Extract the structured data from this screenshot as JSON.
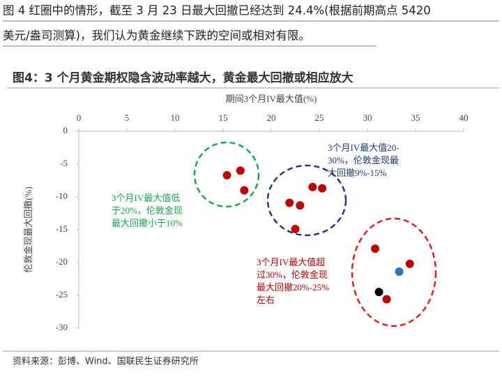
{
  "document": {
    "paragraph": [
      "图 4 红圈中的情形，截至 3 月 23 日最大回撤已经达到 24.4%(根据前期高点 5420",
      "美元/盎司测算)，我们认为黄金继续下跌的空间或相对有限。"
    ],
    "figure_title": "图4：3 个月黄金期权隐含波动率越大，黄金最大回撤或相应放大",
    "source": "资料来源：彭博、Wind、国联民生证券研究所"
  },
  "chart_data": {
    "type": "scatter",
    "x_label": "期间3个月IV最大值(%)",
    "y_label": "伦敦金现最大回撤(%)",
    "xlim": [
      0,
      40
    ],
    "xticks": [
      0,
      5,
      10,
      15,
      20,
      25,
      30,
      35,
      40
    ],
    "ylim": [
      -30,
      0
    ],
    "yticks": [
      0,
      -5,
      -10,
      -15,
      -20,
      -25,
      -30
    ],
    "series": [
      {
        "color": "#c00000",
        "x": [
          15.4,
          16.8,
          17.2,
          21.9,
          23.0,
          22.5,
          24.3,
          25.3,
          30.8,
          34.4,
          32.0
        ],
        "values": [
          -6.7,
          -6.0,
          -9.0,
          -10.9,
          -11.3,
          -14.9,
          -8.5,
          -8.7,
          -17.9,
          -20.2,
          -25.6
        ]
      },
      {
        "color": "#2e75b6",
        "x": [
          33.3
        ],
        "values": [
          -21.4
        ]
      },
      {
        "color": "#000000",
        "x": [
          31.2
        ],
        "values": [
          -24.5
        ]
      }
    ],
    "annotations": [
      {
        "color": "#1aa84a",
        "lines": [
          "3个月IV最大值低",
          "于20%，伦敦金现",
          "最大回撤小于10%"
        ]
      },
      {
        "color": "#1f3a78",
        "lines": [
          "3个月IV最大值20-",
          "30%，伦敦金现最",
          "大回撤9%-15%"
        ]
      },
      {
        "color": "#c00000",
        "lines": [
          "3个月IV最大值超",
          "过30%，伦敦金现",
          "最大回撤20%-25%",
          "左右"
        ]
      }
    ]
  }
}
